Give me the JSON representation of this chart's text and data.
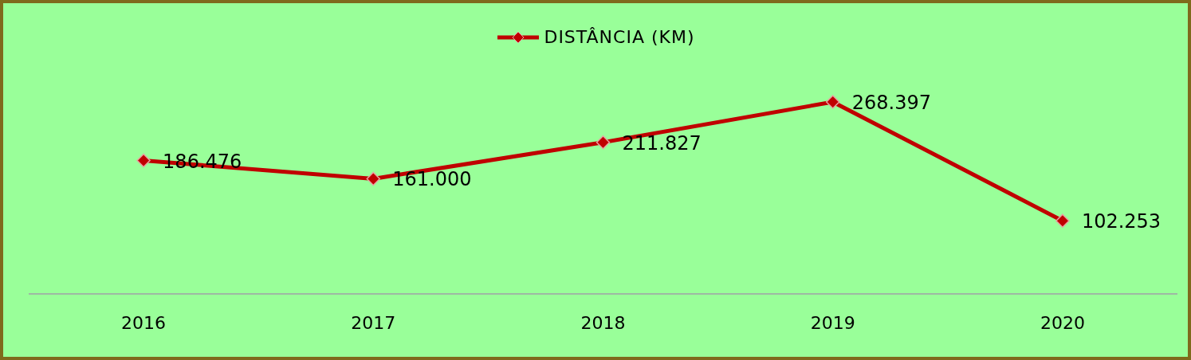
{
  "chart_data": {
    "type": "line",
    "categories": [
      "2016",
      "2017",
      "2018",
      "2019",
      "2020"
    ],
    "series": [
      {
        "name": "DISTÂNCIA (KM)",
        "color": "#c00000",
        "values": [
          186476,
          161000,
          211827,
          268397,
          102253
        ],
        "value_labels": [
          "186.476",
          "161.000",
          "211.827",
          "268.397",
          "102.253"
        ]
      }
    ],
    "marker": "diamond",
    "legend": "top",
    "grid": false
  }
}
